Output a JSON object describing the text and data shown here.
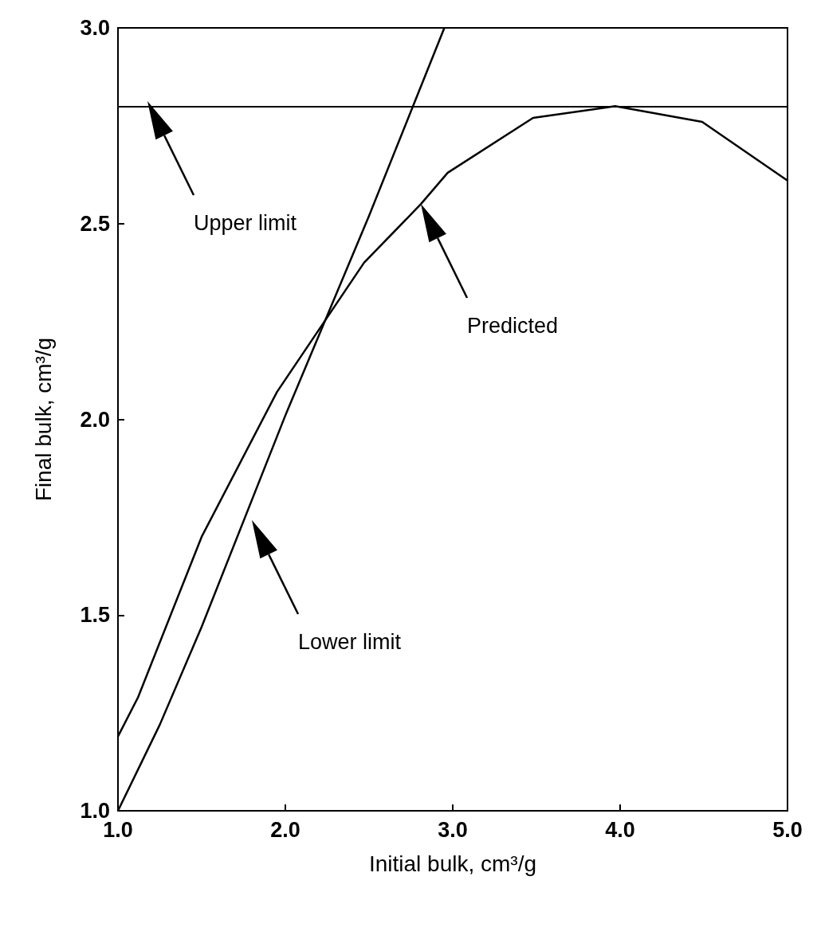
{
  "chart_data": {
    "type": "line",
    "xlabel": "Initial bulk, cm³/g",
    "ylabel": "Final bulk, cm³/g",
    "xlim": [
      1,
      5
    ],
    "ylim": [
      1,
      3
    ],
    "xticks": [
      {
        "value": 1,
        "label": "1.0"
      },
      {
        "value": 2,
        "label": "2.0"
      },
      {
        "value": 3,
        "label": "3.0"
      },
      {
        "value": 4,
        "label": "4.0"
      },
      {
        "value": 5,
        "label": "5.0"
      }
    ],
    "yticks": [
      {
        "value": 1,
        "label": "1.0"
      },
      {
        "value": 1.5,
        "label": "1.5"
      },
      {
        "value": 2,
        "label": "2.0"
      },
      {
        "value": 2.5,
        "label": "2.5"
      },
      {
        "value": 3,
        "label": "3.0"
      }
    ],
    "grid": false,
    "marker": "none",
    "line_style": "solid",
    "series": [
      {
        "color": "#000000",
        "x": [
          1.0,
          1.12,
          1.5,
          1.95,
          2.47,
          2.81,
          2.97,
          3.48,
          3.97,
          4.49,
          5.0
        ],
        "values": [
          1.19,
          1.29,
          1.7,
          2.07,
          2.4,
          2.55,
          2.63,
          2.77,
          2.8,
          2.76,
          2.61
        ]
      },
      {
        "color": "#000000",
        "x": [
          1.0,
          1.25,
          1.5,
          2.0,
          2.5,
          2.95
        ],
        "values": [
          1.0,
          1.22,
          1.47,
          2.01,
          2.52,
          3.0
        ]
      }
    ],
    "ref_lines": [
      {
        "axis": "y",
        "value": 2.8,
        "color": "#000000",
        "line_style": "solid"
      }
    ],
    "annotations": [
      "Upper limit",
      "Predicted",
      "Lower limit"
    ]
  }
}
